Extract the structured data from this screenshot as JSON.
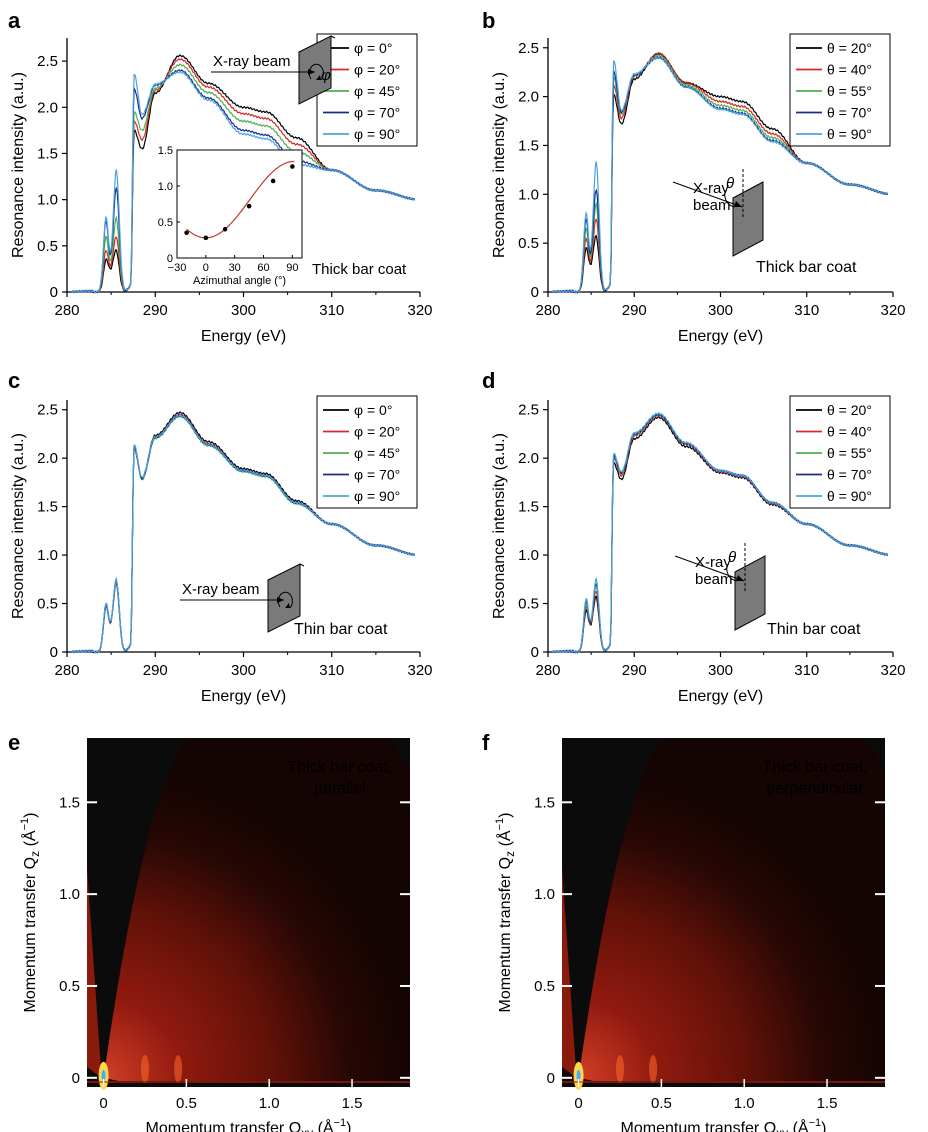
{
  "colors": {
    "s0": "#000000",
    "s1": "#d62728",
    "s2": "#4caf50",
    "s3": "#1a2b8c",
    "s4": "#4aa3df",
    "fit": "#c0392b",
    "plate": "#7a7a7a"
  },
  "chart_data": [
    {
      "id": "a",
      "panel_label": "a",
      "type": "line",
      "xlabel": "Energy (eV)",
      "ylabel": "Resonance intensity (a.u.)",
      "xlim": [
        280,
        320
      ],
      "ylim": [
        0,
        2.75
      ],
      "xticks": [
        "280",
        "290",
        "300",
        "310",
        "320"
      ],
      "yticks": [
        "0",
        "0.5",
        "1.0",
        "1.5",
        "2.0",
        "2.5"
      ],
      "legend_position": "top-right",
      "annotation": "Thick bar coat",
      "beam_label": "X-ray beam",
      "rotation_symbol": "φ",
      "series": [
        {
          "name": "φ = 0°",
          "pk1": 0.3,
          "pk2": 0.4,
          "pk3": 1.75,
          "dip": 1.55,
          "peak": 2.56,
          "shoulder": 1.95
        },
        {
          "name": "φ = 20°",
          "pk1": 0.4,
          "pk2": 0.55,
          "pk3": 1.85,
          "dip": 1.65,
          "peak": 2.52,
          "shoulder": 1.88
        },
        {
          "name": "φ = 45°",
          "pk1": 0.55,
          "pk2": 0.75,
          "pk3": 1.95,
          "dip": 1.75,
          "peak": 2.46,
          "shoulder": 1.8
        },
        {
          "name": "φ = 70°",
          "pk1": 0.72,
          "pk2": 1.08,
          "pk3": 2.2,
          "dip": 1.88,
          "peak": 2.4,
          "shoulder": 1.7
        },
        {
          "name": "φ = 90°",
          "pk1": 0.76,
          "pk2": 1.27,
          "pk3": 2.36,
          "dip": 1.92,
          "peak": 2.38,
          "shoulder": 1.66
        }
      ],
      "inset": {
        "xlabel": "Azimuthal angle (°)",
        "xlim": [
          -30,
          100
        ],
        "ylim": [
          0,
          1.5
        ],
        "xticks": [
          "−30",
          "0",
          "30",
          "60",
          "90"
        ],
        "yticks": [
          "0",
          "0.5",
          "1.0",
          "1.5"
        ],
        "points": [
          [
            -20,
            0.35
          ],
          [
            0,
            0.28
          ],
          [
            20,
            0.4
          ],
          [
            45,
            0.72
          ],
          [
            70,
            1.07
          ],
          [
            90,
            1.27
          ]
        ]
      }
    },
    {
      "id": "b",
      "panel_label": "b",
      "type": "line",
      "xlabel": "Energy (eV)",
      "ylabel": "Resonance intensity (a.u.)",
      "xlim": [
        280,
        320
      ],
      "ylim": [
        0,
        2.6
      ],
      "xticks": [
        "280",
        "290",
        "300",
        "310",
        "320"
      ],
      "yticks": [
        "0",
        "0.5",
        "1.0",
        "1.5",
        "2.0",
        "2.5"
      ],
      "legend_position": "top-right",
      "annotation": "Thick bar coat",
      "beam_label": [
        "X-ray",
        "beam"
      ],
      "rotation_symbol": "θ",
      "series": [
        {
          "name": "θ = 20°",
          "pk1": 0.4,
          "pk2": 0.52,
          "pk3": 2.02,
          "dip": 1.72,
          "peak": 2.44,
          "shoulder": 1.95
        },
        {
          "name": "θ = 40°",
          "pk1": 0.5,
          "pk2": 0.7,
          "pk3": 2.12,
          "dip": 1.78,
          "peak": 2.44,
          "shoulder": 1.9
        },
        {
          "name": "θ = 55°",
          "pk1": 0.6,
          "pk2": 0.85,
          "pk3": 2.2,
          "dip": 1.82,
          "peak": 2.42,
          "shoulder": 1.86
        },
        {
          "name": "θ = 70°",
          "pk1": 0.7,
          "pk2": 1.0,
          "pk3": 2.26,
          "dip": 1.84,
          "peak": 2.4,
          "shoulder": 1.83
        },
        {
          "name": "θ = 90°",
          "pk1": 0.76,
          "pk2": 1.28,
          "pk3": 2.37,
          "dip": 1.86,
          "peak": 2.4,
          "shoulder": 1.82
        }
      ]
    },
    {
      "id": "c",
      "panel_label": "c",
      "type": "line",
      "xlabel": "Energy (eV)",
      "ylabel": "Resonance intensity (a.u.)",
      "xlim": [
        280,
        320
      ],
      "ylim": [
        0,
        2.6
      ],
      "xticks": [
        "280",
        "290",
        "300",
        "310",
        "320"
      ],
      "yticks": [
        "0",
        "0.5",
        "1.0",
        "1.5",
        "2.0",
        "2.5"
      ],
      "legend_position": "top-right",
      "annotation": "Thin bar coat",
      "beam_label": "X-ray beam",
      "series": [
        {
          "name": "φ = 0°",
          "pk1": 0.42,
          "pk2": 0.66,
          "pk3": 2.1,
          "dip": 1.8,
          "peak": 2.47,
          "shoulder": 1.84
        },
        {
          "name": "φ = 20°",
          "pk1": 0.43,
          "pk2": 0.67,
          "pk3": 2.12,
          "dip": 1.79,
          "peak": 2.45,
          "shoulder": 1.82
        },
        {
          "name": "φ = 45°",
          "pk1": 0.44,
          "pk2": 0.68,
          "pk3": 2.12,
          "dip": 1.78,
          "peak": 2.43,
          "shoulder": 1.81
        },
        {
          "name": "φ = 70°",
          "pk1": 0.44,
          "pk2": 0.69,
          "pk3": 2.13,
          "dip": 1.79,
          "peak": 2.44,
          "shoulder": 1.82
        },
        {
          "name": "φ = 90°",
          "pk1": 0.45,
          "pk2": 0.7,
          "pk3": 2.14,
          "dip": 1.8,
          "peak": 2.44,
          "shoulder": 1.82
        }
      ]
    },
    {
      "id": "d",
      "panel_label": "d",
      "type": "line",
      "xlabel": "Energy (eV)",
      "ylabel": "Resonance intensity (a.u.)",
      "xlim": [
        280,
        320
      ],
      "ylim": [
        0,
        2.6
      ],
      "xticks": [
        "280",
        "290",
        "300",
        "310",
        "320"
      ],
      "yticks": [
        "0",
        "0.5",
        "1.0",
        "1.5",
        "2.0",
        "2.5"
      ],
      "legend_position": "top-right",
      "annotation": "Thin bar coat",
      "beam_label": [
        "X-ray",
        "beam"
      ],
      "rotation_symbol": "θ",
      "series": [
        {
          "name": "θ = 20°",
          "pk1": 0.38,
          "pk2": 0.52,
          "pk3": 1.95,
          "dip": 1.78,
          "peak": 2.42,
          "shoulder": 1.8
        },
        {
          "name": "θ = 40°",
          "pk1": 0.42,
          "pk2": 0.58,
          "pk3": 2.0,
          "dip": 1.82,
          "peak": 2.44,
          "shoulder": 1.81
        },
        {
          "name": "θ = 55°",
          "pk1": 0.45,
          "pk2": 0.64,
          "pk3": 2.02,
          "dip": 1.84,
          "peak": 2.45,
          "shoulder": 1.82
        },
        {
          "name": "θ = 70°",
          "pk1": 0.48,
          "pk2": 0.66,
          "pk3": 2.03,
          "dip": 1.85,
          "peak": 2.45,
          "shoulder": 1.82
        },
        {
          "name": "θ = 90°",
          "pk1": 0.5,
          "pk2": 0.7,
          "pk3": 2.05,
          "dip": 1.86,
          "peak": 2.46,
          "shoulder": 1.82
        }
      ]
    },
    {
      "id": "e",
      "panel_label": "e",
      "type": "heatmap",
      "xlabel": "Momentum transfer Q",
      "xlabel_sub": "xy",
      "xlabel_unit": " (Å",
      "ylabel": "Momentum transfer Q",
      "ylabel_sub": "z",
      "xlim": [
        -0.1,
        1.85
      ],
      "ylim": [
        -0.05,
        1.85
      ],
      "xticks": [
        "0",
        "0.5",
        "1.0",
        "1.5"
      ],
      "yticks": [
        "0",
        "0.5",
        "1.0",
        "1.5"
      ],
      "annotation": [
        "Thick bar coat,",
        "parallel"
      ]
    },
    {
      "id": "f",
      "panel_label": "f",
      "type": "heatmap",
      "xlabel": "Momentum transfer Q",
      "xlabel_sub": "xy",
      "xlabel_unit": " (Å",
      "ylabel": "Momentum transfer Q",
      "ylabel_sub": "z",
      "xlim": [
        -0.1,
        1.85
      ],
      "ylim": [
        -0.05,
        1.85
      ],
      "xticks": [
        "0",
        "0.5",
        "1.0",
        "1.5"
      ],
      "yticks": [
        "0",
        "0.5",
        "1.0",
        "1.5"
      ],
      "annotation": [
        "Thick bar coat,",
        "perpendicular"
      ]
    }
  ]
}
